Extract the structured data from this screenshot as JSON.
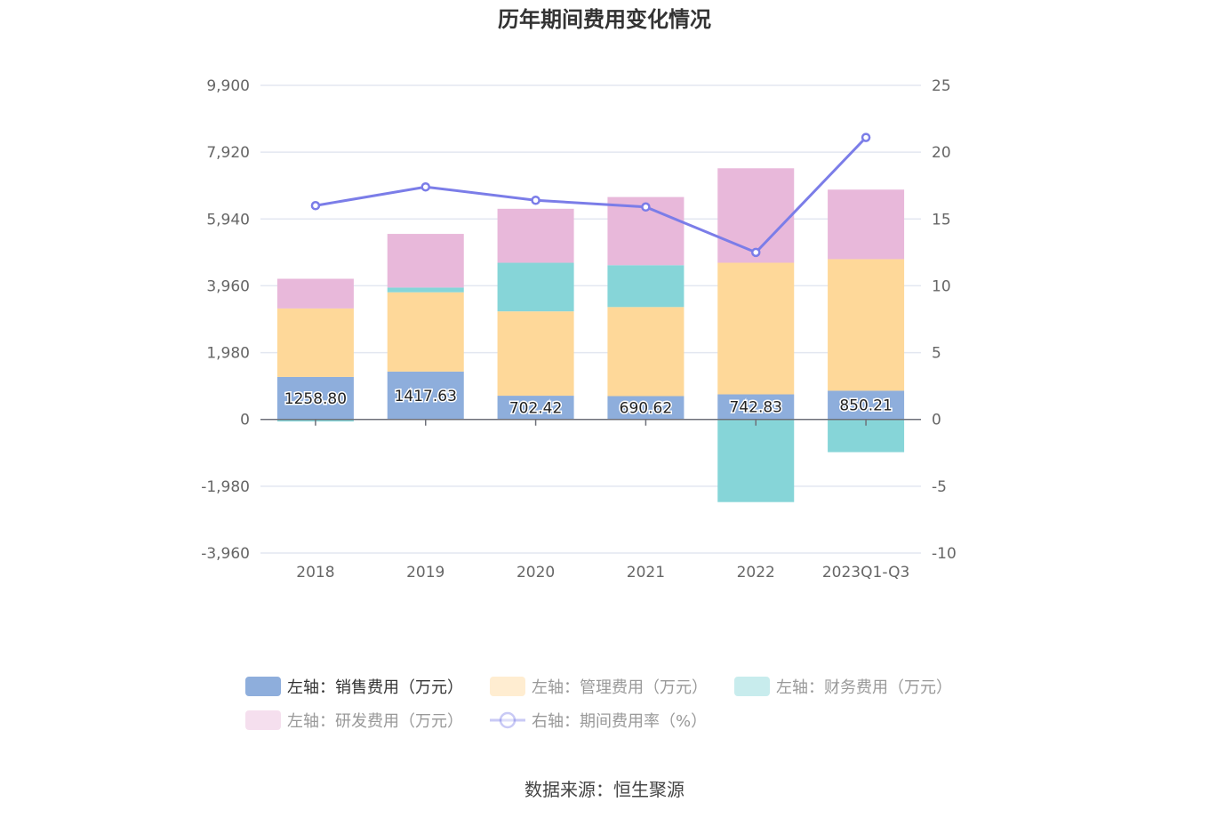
{
  "title": "历年期间费用变化情况",
  "source": "数据来源：恒生聚源",
  "chart_data": {
    "type": "bar",
    "stacked": true,
    "categories": [
      "2018",
      "2019",
      "2020",
      "2021",
      "2022",
      "2023Q1-Q3"
    ],
    "left_axis": {
      "ticks": [
        "9,900",
        "7,920",
        "5,940",
        "3,960",
        "1,980",
        "0",
        "-1,980",
        "-3,960"
      ],
      "ylim": [
        -3960,
        9900
      ]
    },
    "right_axis": {
      "ticks": [
        "25",
        "20",
        "15",
        "10",
        "5",
        "0",
        "-5",
        "-10"
      ],
      "ylim": [
        -10,
        25
      ]
    },
    "series": [
      {
        "name": "左轴：销售费用（万元）",
        "color": "#8eaedc",
        "axis": "left",
        "values": [
          1258.8,
          1417.63,
          702.42,
          690.62,
          742.83,
          850.21
        ],
        "labels": [
          "1258.80",
          "1417.63",
          "702.42",
          "690.62",
          "742.83",
          "850.21"
        ]
      },
      {
        "name": "左轴：管理费用（万元）",
        "color": "#fed899",
        "axis": "left",
        "values": [
          2030,
          2350,
          2500,
          2640,
          3900,
          3900
        ]
      },
      {
        "name": "左轴：财务费用（万元）",
        "color": "#86d5d8",
        "axis": "left",
        "values": [
          -60,
          140,
          1440,
          1240,
          -2450,
          -970
        ]
      },
      {
        "name": "左轴：研发费用（万元）",
        "color": "#e8b8da",
        "axis": "left",
        "values": [
          880,
          1590,
          1600,
          2020,
          2800,
          2060
        ]
      },
      {
        "name": "右轴：期间费用率（%）",
        "color": "#7b7de8",
        "axis": "right",
        "type": "line",
        "values": [
          16.0,
          17.4,
          16.4,
          15.9,
          12.5,
          21.1
        ]
      }
    ],
    "legend_position": "bottom",
    "grid": true
  }
}
